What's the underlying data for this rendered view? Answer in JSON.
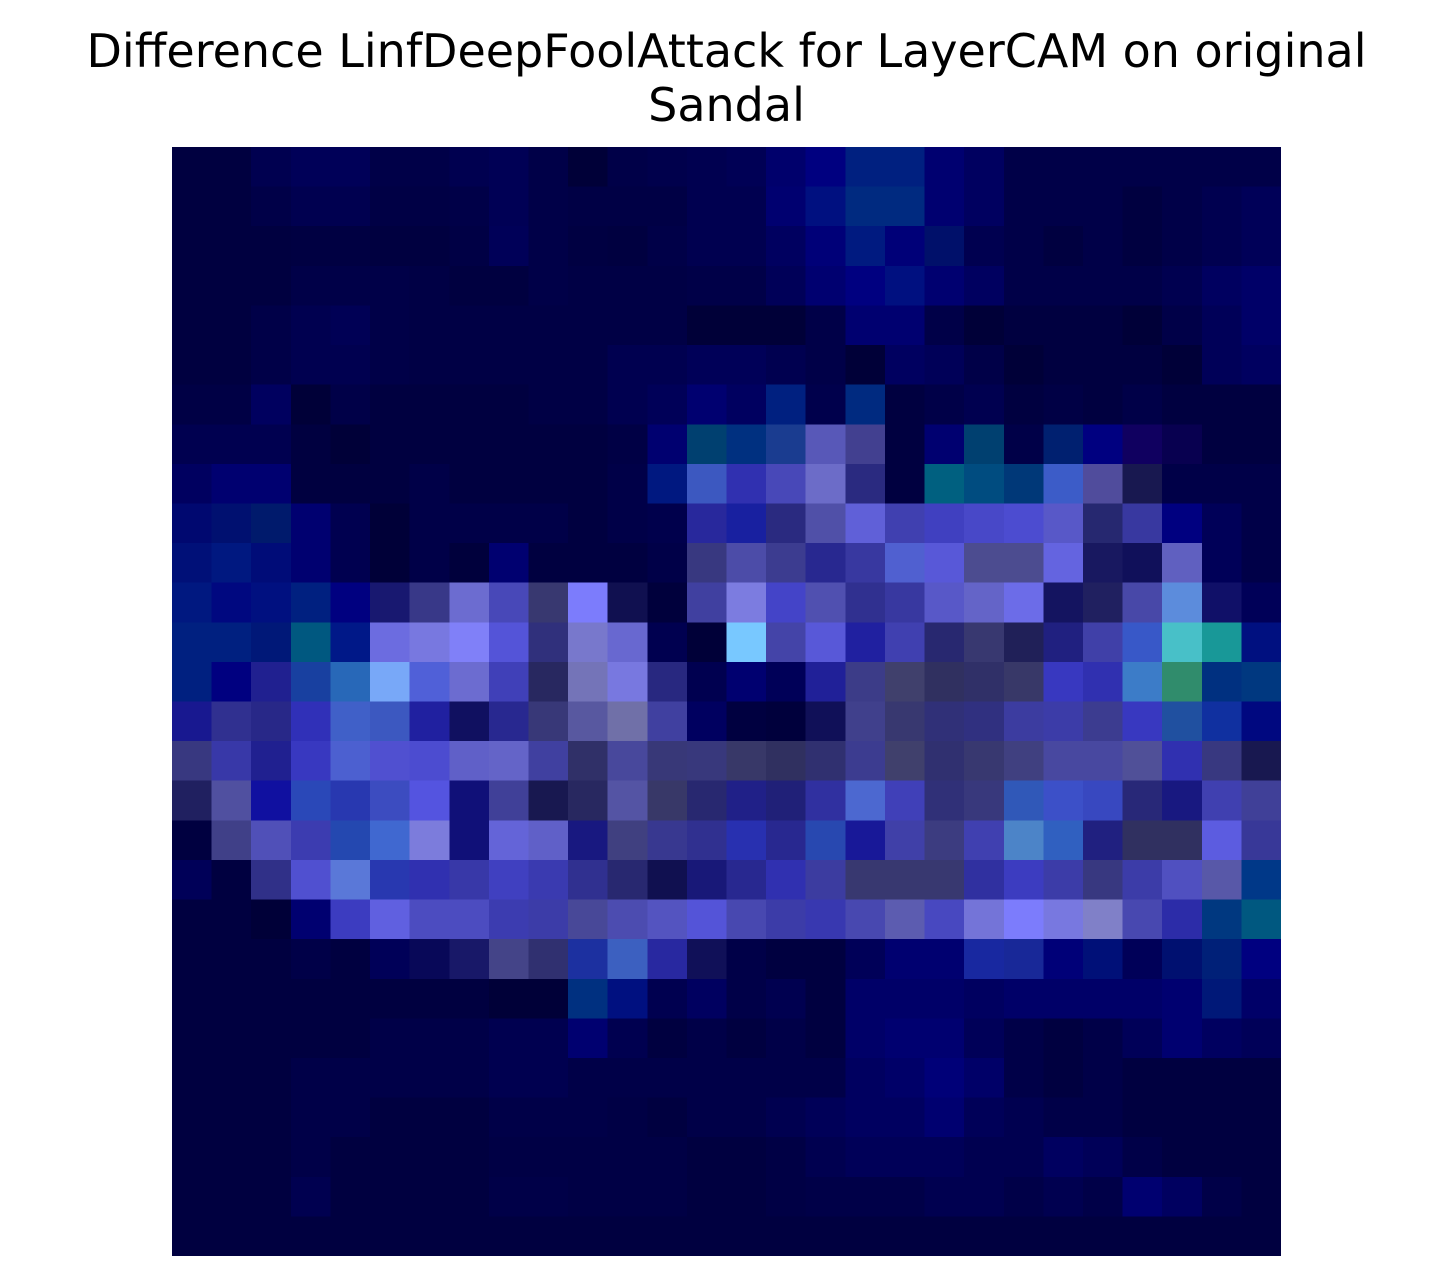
{
  "chart_data": {
    "type": "heatmap",
    "title_lines": [
      "Difference LinfDeepFoolAttack for LayerCAM on original",
      "Sandal"
    ],
    "xlabel": "",
    "ylabel": "",
    "axes_visible": false,
    "grid": false,
    "colorbar": false,
    "rows": 28,
    "cols": 28,
    "colormap": "dark navy to blue/violet to light blue and teal highlights",
    "cells": [
      [
        "#000040",
        "#000040",
        "#000050",
        "#000058",
        "#000058",
        "#000048",
        "#000048",
        "#000050",
        "#000055",
        "#000048",
        "#000038",
        "#000048",
        "#00004c",
        "#000050",
        "#000055",
        "#00006c",
        "#000080",
        "#002080",
        "#002080",
        "#000070",
        "#000060",
        "#000048",
        "#000048",
        "#000048",
        "#000048",
        "#000048",
        "#000048",
        "#000048"
      ],
      [
        "#000040",
        "#000040",
        "#000048",
        "#000050",
        "#000050",
        "#000045",
        "#000045",
        "#000048",
        "#000055",
        "#000048",
        "#000045",
        "#000045",
        "#000045",
        "#000050",
        "#000050",
        "#000070",
        "#001080",
        "#002a80",
        "#002a80",
        "#000070",
        "#000060",
        "#000048",
        "#000048",
        "#000048",
        "#000040",
        "#000048",
        "#000050",
        "#000058"
      ],
      [
        "#000040",
        "#000040",
        "#000040",
        "#000042",
        "#000042",
        "#000040",
        "#000040",
        "#000045",
        "#000058",
        "#000048",
        "#000042",
        "#000040",
        "#000048",
        "#000050",
        "#000050",
        "#000060",
        "#000078",
        "#001a80",
        "#000078",
        "#00106a",
        "#000050",
        "#000048",
        "#000040",
        "#000048",
        "#000040",
        "#000048",
        "#000050",
        "#000058"
      ],
      [
        "#000040",
        "#000040",
        "#000040",
        "#000048",
        "#000048",
        "#000048",
        "#000045",
        "#000040",
        "#000040",
        "#000048",
        "#000045",
        "#000045",
        "#000045",
        "#000048",
        "#000048",
        "#000058",
        "#000070",
        "#000080",
        "#001080",
        "#000070",
        "#000060",
        "#000048",
        "#000048",
        "#000048",
        "#000048",
        "#000050",
        "#000060",
        "#000068"
      ],
      [
        "#000040",
        "#000040",
        "#000048",
        "#000050",
        "#000055",
        "#000048",
        "#000045",
        "#000045",
        "#000045",
        "#000045",
        "#000045",
        "#000045",
        "#000045",
        "#000038",
        "#000038",
        "#000038",
        "#000048",
        "#000070",
        "#000070",
        "#000048",
        "#000038",
        "#000040",
        "#000040",
        "#000040",
        "#000038",
        "#000048",
        "#000058",
        "#000068"
      ],
      [
        "#000040",
        "#000040",
        "#000048",
        "#000050",
        "#000050",
        "#000048",
        "#000045",
        "#000045",
        "#000045",
        "#000045",
        "#000045",
        "#000050",
        "#000050",
        "#000058",
        "#000058",
        "#000050",
        "#000048",
        "#000038",
        "#000060",
        "#000058",
        "#000048",
        "#000038",
        "#000040",
        "#000040",
        "#000040",
        "#000038",
        "#000058",
        "#000060"
      ],
      [
        "#000045",
        "#000045",
        "#00005f",
        "#000038",
        "#000048",
        "#000040",
        "#000040",
        "#000040",
        "#000040",
        "#000045",
        "#000045",
        "#000050",
        "#000058",
        "#000070",
        "#000060",
        "#002080",
        "#00004c",
        "#002a80",
        "#000040",
        "#000048",
        "#000050",
        "#000040",
        "#000045",
        "#000040",
        "#000048",
        "#000040",
        "#000040",
        "#000040"
      ],
      [
        "#000050",
        "#000050",
        "#000050",
        "#000040",
        "#000038",
        "#000040",
        "#000040",
        "#000040",
        "#000040",
        "#000040",
        "#000040",
        "#000045",
        "#000070",
        "#004070",
        "#003080",
        "#1a3c90",
        "#5858b8",
        "#424090",
        "#000040",
        "#000070",
        "#004070",
        "#000048",
        "#002070",
        "#000080",
        "#100060",
        "#080050",
        "#000040",
        "#000040"
      ],
      [
        "#000060",
        "#000070",
        "#000070",
        "#000040",
        "#000040",
        "#000040",
        "#000048",
        "#000040",
        "#000040",
        "#000040",
        "#000040",
        "#000048",
        "#001880",
        "#3c58c0",
        "#3030b0",
        "#4848b8",
        "#6c6cc8",
        "#2a2a80",
        "#000040",
        "#006080",
        "#004c80",
        "#003878",
        "#3c5cc8",
        "#504c9c",
        "#181850",
        "#000048",
        "#000048",
        "#000048"
      ],
      [
        "#000870",
        "#001070",
        "#001a6c",
        "#000070",
        "#000050",
        "#000038",
        "#000048",
        "#000048",
        "#000048",
        "#000048",
        "#000040",
        "#000048",
        "#00004c",
        "#28289c",
        "#1820a0",
        "#2a2a80",
        "#5050a8",
        "#6060d8",
        "#4040b0",
        "#4040c0",
        "#4848c8",
        "#4c4cd0",
        "#5858c8",
        "#262870",
        "#3838a0",
        "#000080",
        "#000058",
        "#000048"
      ],
      [
        "#001078",
        "#001880",
        "#000c78",
        "#000070",
        "#000050",
        "#000038",
        "#000048",
        "#00003c",
        "#000070",
        "#000040",
        "#000040",
        "#000040",
        "#000048",
        "#383880",
        "#4c4ca8",
        "#3c3c90",
        "#282890",
        "#3838a0",
        "#5060d0",
        "#5858d8",
        "#4c4c90",
        "#4c4c90",
        "#6464e0",
        "#181860",
        "#10105a",
        "#6060c0",
        "#000058",
        "#000048"
      ],
      [
        "#001880",
        "#000880",
        "#001080",
        "#002080",
        "#000080",
        "#181870",
        "#383888",
        "#6c6cd0",
        "#4848b8",
        "#383870",
        "#7c7cfc",
        "#101050",
        "#00003c",
        "#4040a0",
        "#7c7ce0",
        "#4444c8",
        "#5050b0",
        "#303090",
        "#3838a0",
        "#5858c8",
        "#6464c8",
        "#6c6ce8",
        "#141460",
        "#202060",
        "#4848a8",
        "#5c8cdc",
        "#101068",
        "#000058"
      ],
      [
        "#002080",
        "#002080",
        "#001878",
        "#005880",
        "#001888",
        "#6c6ce0",
        "#7878e0",
        "#8080f8",
        "#5454d8",
        "#30307c",
        "#7878cc",
        "#6868d0",
        "#000050",
        "#000038",
        "#78c8ff",
        "#4444a8",
        "#5858d8",
        "#2020a0",
        "#4040b0",
        "#282870",
        "#383870",
        "#202058",
        "#202080",
        "#4040a8",
        "#3858c8",
        "#48c0c8",
        "#189898",
        "#001080"
      ],
      [
        "#002080",
        "#000080",
        "#202090",
        "#1840a0",
        "#2868b8",
        "#78a8f8",
        "#5060d8",
        "#6c6cd0",
        "#4040b8",
        "#282860",
        "#7474b8",
        "#7878e0",
        "#282880",
        "#000050",
        "#000070",
        "#000058",
        "#202098",
        "#3c3c88",
        "#40406c",
        "#303060",
        "#303068",
        "#383868",
        "#3838c0",
        "#3030b0",
        "#3c7cc8",
        "#308c6c",
        "#003080",
        "#003880"
      ],
      [
        "#181890",
        "#303090",
        "#282888",
        "#3030b8",
        "#4060c8",
        "#3c58c0",
        "#2020a0",
        "#101060",
        "#282890",
        "#383878",
        "#5858a0",
        "#7070a8",
        "#4040a0",
        "#000060",
        "#000040",
        "#00003c",
        "#101058",
        "#40408c",
        "#383870",
        "#303078",
        "#303080",
        "#3c3ca0",
        "#3c3ca8",
        "#3c3c90",
        "#3838c0",
        "#2050a0",
        "#1030a0",
        "#000880"
      ],
      [
        "#383880",
        "#3838a8",
        "#202090",
        "#3838c0",
        "#4c60d0",
        "#5050d0",
        "#4c4cd0",
        "#6060c8",
        "#6464c8",
        "#4040a0",
        "#303068",
        "#48489c",
        "#383878",
        "#38387c",
        "#383868",
        "#303060",
        "#303070",
        "#3c3c90",
        "#40406c",
        "#303070",
        "#383870",
        "#404080",
        "#4848a0",
        "#4848a0",
        "#505098",
        "#3030b0",
        "#383880",
        "#181850"
      ],
      [
        "#202060",
        "#5050a0",
        "#1010a0",
        "#2a48b8",
        "#2838b0",
        "#3c4cc0",
        "#5454e0",
        "#101078",
        "#404098",
        "#181850",
        "#282860",
        "#5454a4",
        "#383868",
        "#282870",
        "#202088",
        "#202078",
        "#3030a0",
        "#4c68d0",
        "#4040b8",
        "#303078",
        "#38387c",
        "#3058b8",
        "#3c50c8",
        "#3848c0",
        "#282878",
        "#181880",
        "#4040b0",
        "#404098"
      ],
      [
        "#000040",
        "#404088",
        "#5050b8",
        "#3c3cb0",
        "#2448b0",
        "#4068d0",
        "#7c7cdc",
        "#101078",
        "#6464d8",
        "#6060c8",
        "#181880",
        "#404080",
        "#383890",
        "#303090",
        "#2830b0",
        "#282890",
        "#2848b0",
        "#181898",
        "#4040a8",
        "#3c3c80",
        "#4040b0",
        "#4c84c8",
        "#3060c0",
        "#202080",
        "#303060",
        "#303060",
        "#5c5ce0",
        "#383898"
      ],
      [
        "#000058",
        "#000040",
        "#303088",
        "#5050d0",
        "#5a78d8",
        "#2838b0",
        "#3030b0",
        "#3838a8",
        "#4040c0",
        "#3a3ab0",
        "#303090",
        "#282870",
        "#101050",
        "#181878",
        "#282890",
        "#3030b0",
        "#3c3ca0",
        "#383870",
        "#383870",
        "#383870",
        "#3030a0",
        "#3c3cc0",
        "#3c3ca8",
        "#383880",
        "#3c3ca8",
        "#5050c0",
        "#5858a8",
        "#003888"
      ],
      [
        "#000040",
        "#000040",
        "#000038",
        "#000070",
        "#3c3cc0",
        "#6060e0",
        "#4c4cc0",
        "#4c4cc0",
        "#3c3cb0",
        "#3c3ca8",
        "#484898",
        "#4c4cb0",
        "#5454c0",
        "#5454d8",
        "#4848b0",
        "#3c3ca8",
        "#3838b0",
        "#4848b0",
        "#5c5cb0",
        "#4848c0",
        "#7474d8",
        "#7c7cfc",
        "#7878e0",
        "#8080c8",
        "#4848b0",
        "#2c2ca8",
        "#003880",
        "#005880"
      ],
      [
        "#000040",
        "#000040",
        "#000040",
        "#000048",
        "#000040",
        "#000058",
        "#080858",
        "#181868",
        "#444488",
        "#303070",
        "#1c30a0",
        "#3c60c0",
        "#2828a0",
        "#101058",
        "#000048",
        "#000040",
        "#000040",
        "#000058",
        "#000070",
        "#000070",
        "#1828a0",
        "#182898",
        "#000078",
        "#001078",
        "#000058",
        "#001070",
        "#002078",
        "#000080"
      ],
      [
        "#000040",
        "#000040",
        "#000040",
        "#000040",
        "#000040",
        "#000040",
        "#000040",
        "#000040",
        "#000038",
        "#000038",
        "#003080",
        "#001080",
        "#000050",
        "#000060",
        "#000048",
        "#000050",
        "#000040",
        "#000068",
        "#000068",
        "#000068",
        "#000060",
        "#000068",
        "#000068",
        "#000068",
        "#000068",
        "#000070",
        "#001878",
        "#000068"
      ],
      [
        "#000040",
        "#000040",
        "#000040",
        "#000040",
        "#000040",
        "#000048",
        "#000048",
        "#000048",
        "#000050",
        "#000050",
        "#000070",
        "#000050",
        "#000040",
        "#000048",
        "#000040",
        "#000048",
        "#000040",
        "#000068",
        "#000070",
        "#000070",
        "#000058",
        "#000048",
        "#000040",
        "#000048",
        "#000058",
        "#000070",
        "#000060",
        "#000058"
      ],
      [
        "#000040",
        "#000040",
        "#000040",
        "#000048",
        "#000048",
        "#000048",
        "#000048",
        "#000048",
        "#000050",
        "#000050",
        "#000048",
        "#000048",
        "#000048",
        "#000048",
        "#000048",
        "#000048",
        "#000048",
        "#000060",
        "#000068",
        "#000078",
        "#000068",
        "#000048",
        "#000040",
        "#000048",
        "#000040",
        "#000040",
        "#000040",
        "#000040"
      ],
      [
        "#000040",
        "#000040",
        "#000040",
        "#000048",
        "#000048",
        "#000040",
        "#000040",
        "#000040",
        "#000048",
        "#000048",
        "#000048",
        "#000045",
        "#000040",
        "#000048",
        "#000048",
        "#000050",
        "#000058",
        "#000060",
        "#000060",
        "#000070",
        "#000058",
        "#000050",
        "#000048",
        "#000048",
        "#000040",
        "#000040",
        "#000040",
        "#000040"
      ],
      [
        "#000040",
        "#000040",
        "#000040",
        "#000048",
        "#000040",
        "#000040",
        "#000040",
        "#000040",
        "#000045",
        "#000045",
        "#000045",
        "#000045",
        "#000045",
        "#000040",
        "#000040",
        "#000045",
        "#000050",
        "#000058",
        "#000058",
        "#000058",
        "#000050",
        "#000050",
        "#000060",
        "#000058",
        "#000048",
        "#000040",
        "#000040",
        "#000040"
      ],
      [
        "#000040",
        "#000040",
        "#000040",
        "#000050",
        "#000040",
        "#000040",
        "#000040",
        "#000040",
        "#000048",
        "#000048",
        "#000045",
        "#000045",
        "#000045",
        "#000040",
        "#000040",
        "#000045",
        "#000048",
        "#000048",
        "#000048",
        "#000050",
        "#000050",
        "#000048",
        "#000050",
        "#000048",
        "#000070",
        "#000060",
        "#000048",
        "#000040"
      ],
      [
        "#000040",
        "#000040",
        "#000040",
        "#000040",
        "#000040",
        "#000040",
        "#000040",
        "#000040",
        "#000040",
        "#000040",
        "#000040",
        "#000040",
        "#000040",
        "#000040",
        "#000040",
        "#000040",
        "#000040",
        "#000040",
        "#000040",
        "#000040",
        "#000040",
        "#000040",
        "#000040",
        "#000040",
        "#000040",
        "#000040",
        "#000040",
        "#000040"
      ]
    ]
  }
}
